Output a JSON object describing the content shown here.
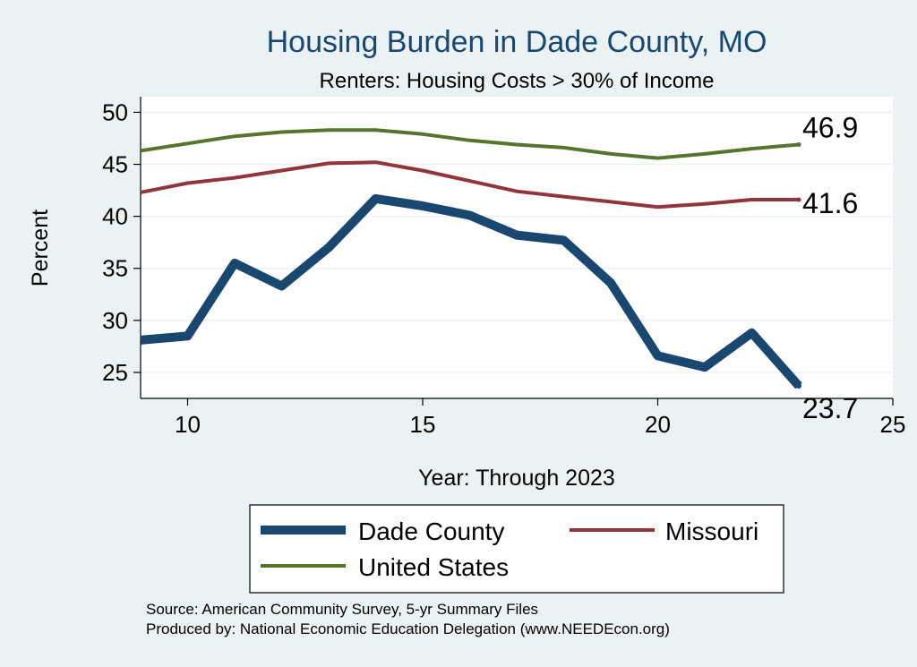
{
  "chart_data": {
    "type": "line",
    "title": "Housing Burden in Dade County, MO",
    "subtitle": "Renters: Housing Costs > 30% of Income",
    "xlabel": "Year: Through 2023",
    "ylabel": "Percent",
    "xlim": [
      9,
      25
    ],
    "ylim": [
      22.5,
      51.5
    ],
    "xticks": [
      10,
      15,
      20,
      25
    ],
    "yticks": [
      25,
      30,
      35,
      40,
      45,
      50
    ],
    "grid": true,
    "legend_position": "bottom",
    "x": [
      9,
      10,
      11,
      12,
      13,
      14,
      15,
      16,
      17,
      18,
      19,
      20,
      21,
      22,
      23
    ],
    "series": [
      {
        "name": "Dade County",
        "color": "#1a476f",
        "values": [
          28.1,
          28.5,
          35.5,
          33.3,
          37.0,
          41.7,
          41.0,
          40.1,
          38.2,
          37.7,
          33.6,
          26.6,
          25.5,
          28.8,
          23.7
        ],
        "end_label": "23.7"
      },
      {
        "name": "Missouri",
        "color": "#90353b",
        "values": [
          42.3,
          43.2,
          43.7,
          44.4,
          45.1,
          45.2,
          44.4,
          43.4,
          42.4,
          41.9,
          41.4,
          40.9,
          41.2,
          41.6,
          41.6
        ],
        "end_label": "41.6"
      },
      {
        "name": "United States",
        "color": "#55752f",
        "values": [
          46.3,
          47.0,
          47.7,
          48.1,
          48.3,
          48.3,
          47.9,
          47.3,
          46.9,
          46.6,
          46.0,
          45.6,
          46.0,
          46.5,
          46.9
        ],
        "end_label": "46.9"
      }
    ],
    "source_lines": [
      "Source: American Community Survey, 5-yr Summary Files",
      "Produced by: National Economic Education Delegation (www.NEEDEcon.org)"
    ]
  }
}
